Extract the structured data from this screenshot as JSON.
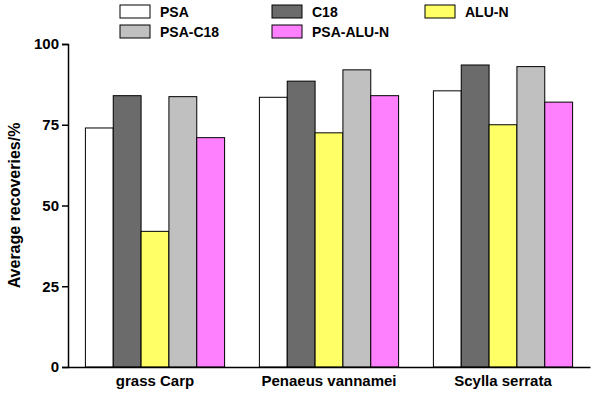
{
  "chart_data": {
    "type": "bar",
    "y_label": "Average recoveries/%",
    "categories": [
      "grass Carp",
      "Penaeus vannamei",
      "Scylla serrata"
    ],
    "series": [
      {
        "name": "PSA",
        "color": "#ffffff",
        "values": [
          74,
          83.5,
          85.5
        ]
      },
      {
        "name": "C18",
        "color": "#6b6b6b",
        "values": [
          84,
          88.5,
          93.5
        ]
      },
      {
        "name": "ALU-N",
        "color": "#ffff66",
        "values": [
          42,
          72.5,
          75
        ]
      },
      {
        "name": "PSA-C18",
        "color": "#c0c0c0",
        "values": [
          83.7,
          92,
          93
        ]
      },
      {
        "name": "PSA-ALU-N",
        "color": "#ff80ff",
        "values": [
          71,
          84,
          82
        ]
      }
    ],
    "ylim": [
      0,
      100
    ],
    "yticks": [
      0,
      25,
      50,
      75,
      100
    ],
    "grid": false,
    "legend": "top"
  }
}
